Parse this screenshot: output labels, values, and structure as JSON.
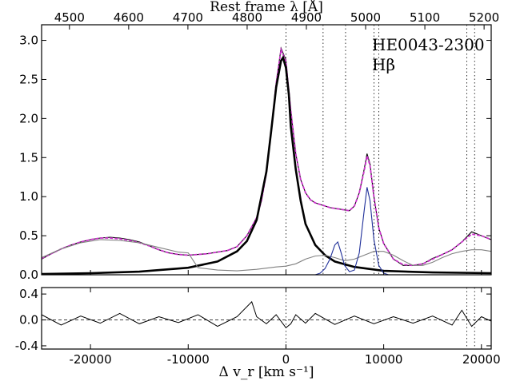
{
  "chart_data": {
    "type": "line",
    "object_name": "HE0043-2300",
    "line_label": "Hβ",
    "top_axis": {
      "label": "Rest frame λ [Å]",
      "range": [
        4453,
        5212
      ],
      "ticks": [
        4500,
        4600,
        4700,
        4800,
        4900,
        5000,
        5100,
        5200
      ]
    },
    "main_panel": {
      "xlim": [
        -25000,
        21000
      ],
      "ylim": [
        0,
        3.2
      ],
      "xticks": [
        -20000,
        -10000,
        0,
        10000,
        20000
      ],
      "yticks": [
        0.0,
        0.5,
        1.0,
        1.5,
        2.0,
        2.5,
        3.0
      ],
      "ytick_labels": [
        "0.0",
        "0.5",
        "1.0",
        "1.5",
        "2.0",
        "2.5",
        "3.0"
      ],
      "vertical_markers_kms": [
        0,
        3800,
        6100,
        9000,
        9500,
        18500,
        19300
      ]
    },
    "residual_panel": {
      "ylim": [
        -0.45,
        0.5
      ],
      "yticks": [
        -0.4,
        0.0,
        0.4
      ],
      "ytick_labels": [
        "-0.4",
        "0.0",
        "0.4"
      ],
      "vertical_markers_kms": [
        0,
        18500,
        19300
      ]
    },
    "xlabel": "Δ v_r [km s⁻¹]",
    "xtick_labels": [
      "-20000",
      "-10000",
      "0",
      "10000",
      "20000"
    ],
    "series": [
      {
        "name": "observed spectrum",
        "color": "#000000",
        "x": [
          -25000,
          -24000,
          -23000,
          -22000,
          -21000,
          -20000,
          -19000,
          -18000,
          -17000,
          -16000,
          -15000,
          -14000,
          -13000,
          -12000,
          -11000,
          -10000,
          -9000,
          -8000,
          -7000,
          -6000,
          -5000,
          -4000,
          -3000,
          -2500,
          -2000,
          -1500,
          -1000,
          -500,
          0,
          500,
          1000,
          1500,
          2000,
          2500,
          3000,
          3500,
          4000,
          4500,
          5000,
          5500,
          6000,
          6500,
          7000,
          7500,
          8000,
          8300,
          8600,
          9000,
          9500,
          10000,
          11000,
          12000,
          13000,
          14000,
          15000,
          16000,
          17000,
          18000,
          19000,
          20000,
          21000
        ],
        "y": [
          0.2,
          0.27,
          0.33,
          0.38,
          0.42,
          0.45,
          0.47,
          0.48,
          0.47,
          0.45,
          0.42,
          0.37,
          0.32,
          0.28,
          0.26,
          0.25,
          0.26,
          0.27,
          0.29,
          0.31,
          0.36,
          0.5,
          0.73,
          0.95,
          1.3,
          1.85,
          2.45,
          2.9,
          2.75,
          2.1,
          1.55,
          1.22,
          1.05,
          0.96,
          0.92,
          0.9,
          0.88,
          0.86,
          0.85,
          0.84,
          0.83,
          0.82,
          0.88,
          1.05,
          1.35,
          1.55,
          1.42,
          1.0,
          0.6,
          0.4,
          0.2,
          0.12,
          0.12,
          0.14,
          0.21,
          0.26,
          0.32,
          0.42,
          0.55,
          0.5,
          0.45
        ]
      },
      {
        "name": "total model fit",
        "color": "#cc33cc",
        "x": [
          -25000,
          -24000,
          -23000,
          -22000,
          -21000,
          -20000,
          -19000,
          -18000,
          -17000,
          -16000,
          -15000,
          -14000,
          -13000,
          -12000,
          -11000,
          -10000,
          -9000,
          -8000,
          -7000,
          -6000,
          -5000,
          -4000,
          -3000,
          -2500,
          -2000,
          -1500,
          -1000,
          -500,
          0,
          500,
          1000,
          1500,
          2000,
          2500,
          3000,
          3500,
          4000,
          4500,
          5000,
          5500,
          6000,
          6500,
          7000,
          7500,
          8000,
          8300,
          8600,
          9000,
          9500,
          10000,
          11000,
          12000,
          13000,
          14000,
          15000,
          16000,
          17000,
          18000,
          19000,
          20000,
          21000
        ],
        "y": [
          0.21,
          0.27,
          0.33,
          0.38,
          0.42,
          0.45,
          0.47,
          0.47,
          0.46,
          0.44,
          0.41,
          0.37,
          0.32,
          0.28,
          0.26,
          0.25,
          0.26,
          0.27,
          0.29,
          0.31,
          0.36,
          0.5,
          0.73,
          0.95,
          1.3,
          1.85,
          2.45,
          2.88,
          2.73,
          2.1,
          1.55,
          1.22,
          1.05,
          0.96,
          0.92,
          0.9,
          0.88,
          0.86,
          0.85,
          0.84,
          0.83,
          0.82,
          0.88,
          1.05,
          1.33,
          1.52,
          1.4,
          1.0,
          0.6,
          0.4,
          0.2,
          0.13,
          0.12,
          0.14,
          0.2,
          0.26,
          0.32,
          0.42,
          0.52,
          0.5,
          0.45
        ]
      },
      {
        "name": "broad Hβ component",
        "color": "#000000",
        "x": [
          -25000,
          -20000,
          -15000,
          -10000,
          -7000,
          -5000,
          -4000,
          -3000,
          -2000,
          -1500,
          -1000,
          -500,
          -300,
          0,
          300,
          500,
          1000,
          1500,
          2000,
          3000,
          4000,
          5000,
          7000,
          10000,
          15000,
          21000
        ],
        "y": [
          0.01,
          0.02,
          0.04,
          0.09,
          0.17,
          0.3,
          0.43,
          0.7,
          1.32,
          1.85,
          2.4,
          2.74,
          2.78,
          2.65,
          2.3,
          1.9,
          1.35,
          0.95,
          0.65,
          0.38,
          0.25,
          0.17,
          0.1,
          0.05,
          0.03,
          0.02
        ]
      },
      {
        "name": "Fe II / continuum components",
        "color": "#808080",
        "x": [
          -25000,
          -23000,
          -21000,
          -19000,
          -17000,
          -15000,
          -13000,
          -11000,
          -10000,
          -9000,
          -7000,
          -5000,
          -3000,
          -1000,
          0,
          1000,
          2000,
          3000,
          4000,
          5000,
          6000,
          7000,
          8000,
          9000,
          10000,
          11000,
          12000,
          13000,
          14000,
          15000,
          16000,
          17000,
          18000,
          19000,
          20000,
          21000
        ],
        "y": [
          0.22,
          0.33,
          0.41,
          0.45,
          0.44,
          0.41,
          0.35,
          0.29,
          0.28,
          0.09,
          0.06,
          0.05,
          0.07,
          0.1,
          0.11,
          0.14,
          0.2,
          0.24,
          0.25,
          0.22,
          0.18,
          0.2,
          0.25,
          0.3,
          0.3,
          0.25,
          0.18,
          0.12,
          0.12,
          0.16,
          0.22,
          0.27,
          0.3,
          0.32,
          0.32,
          0.3
        ]
      },
      {
        "name": "narrow Hβ and [O III] components",
        "color": "#1f2f99",
        "x": [
          3000,
          3500,
          4000,
          4500,
          5000,
          5300,
          5600,
          6000,
          6500,
          7000,
          7500,
          8000,
          8300,
          8600,
          9000,
          9500,
          10000,
          10500
        ],
        "y": [
          0.0,
          0.02,
          0.08,
          0.2,
          0.38,
          0.42,
          0.3,
          0.12,
          0.04,
          0.06,
          0.28,
          0.82,
          1.12,
          0.95,
          0.45,
          0.12,
          0.02,
          0.0
        ]
      }
    ],
    "residuals": {
      "x": [
        -25000,
        -23000,
        -21000,
        -19000,
        -17000,
        -15000,
        -13000,
        -11000,
        -9000,
        -7000,
        -5000,
        -3500,
        -3000,
        -2000,
        -1000,
        0,
        500,
        1000,
        2000,
        3000,
        5000,
        7000,
        9000,
        11000,
        13000,
        15000,
        17000,
        18000,
        19000,
        20000,
        21000
      ],
      "y": [
        0.08,
        -0.08,
        0.06,
        -0.05,
        0.1,
        -0.06,
        0.05,
        -0.04,
        0.08,
        -0.1,
        0.05,
        0.28,
        0.05,
        -0.06,
        0.08,
        -0.12,
        -0.06,
        0.08,
        -0.05,
        0.1,
        -0.07,
        0.06,
        -0.06,
        0.05,
        -0.05,
        0.06,
        -0.08,
        0.15,
        -0.1,
        0.05,
        -0.02
      ]
    }
  }
}
